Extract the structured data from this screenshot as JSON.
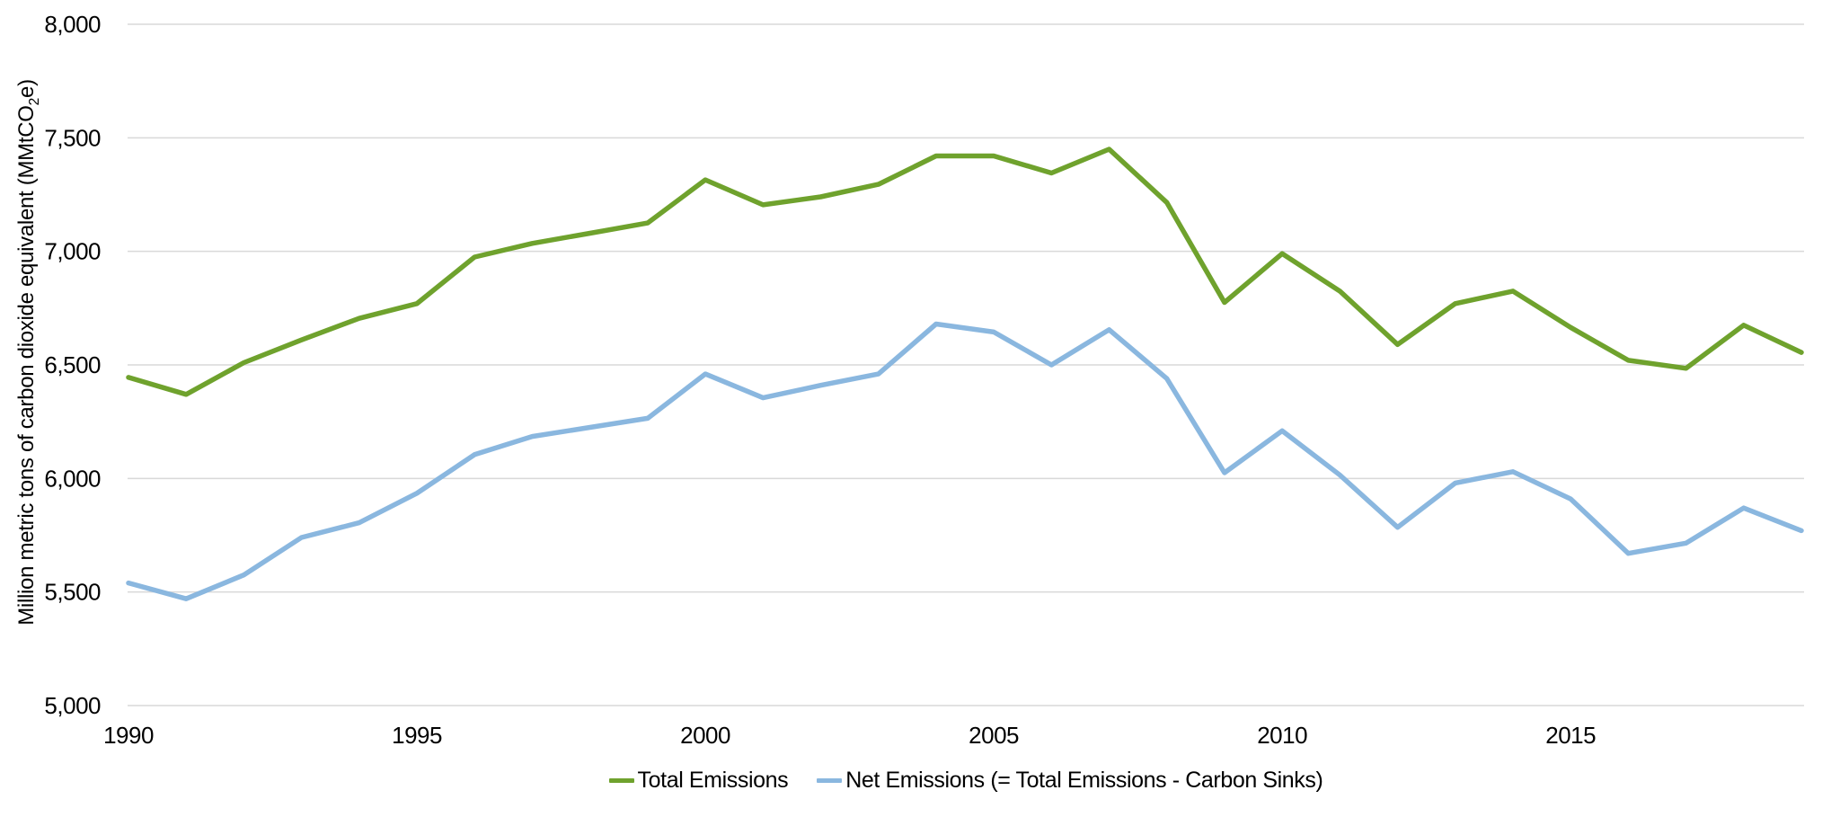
{
  "page": {
    "background_color": "#FFFFFF",
    "text_color": "#000000"
  },
  "chart_data": {
    "type": "line",
    "title": "",
    "y_axis": {
      "label_parts": {
        "pre": "Million metric tons of carbon dioxide equivalent (MMtCO",
        "sub": "2",
        "post": "e)"
      },
      "min": 5000,
      "max": 8000,
      "tick_step": 500,
      "ticks": [
        {
          "value": 5000,
          "label": "5,000"
        },
        {
          "value": 5500,
          "label": "5,500"
        },
        {
          "value": 6000,
          "label": "6,000"
        },
        {
          "value": 6500,
          "label": "6,500"
        },
        {
          "value": 7000,
          "label": "7,000"
        },
        {
          "value": 7500,
          "label": "7,500"
        },
        {
          "value": 8000,
          "label": "8,000"
        }
      ]
    },
    "x_axis": {
      "min": 1990,
      "max": 2019,
      "ticks": [
        {
          "value": 1990,
          "label": "1990"
        },
        {
          "value": 1995,
          "label": "1995"
        },
        {
          "value": 2000,
          "label": "2000"
        },
        {
          "value": 2005,
          "label": "2005"
        },
        {
          "value": 2010,
          "label": "2010"
        },
        {
          "value": 2015,
          "label": "2015"
        }
      ]
    },
    "grid": true,
    "grid_color": "#D9D9D9",
    "legend_position": "bottom-center",
    "x": [
      1990,
      1991,
      1992,
      1993,
      1994,
      1995,
      1996,
      1997,
      1998,
      1999,
      2000,
      2001,
      2002,
      2003,
      2004,
      2005,
      2006,
      2007,
      2008,
      2009,
      2010,
      2011,
      2012,
      2013,
      2014,
      2015,
      2016,
      2017,
      2018,
      2019
    ],
    "series": [
      {
        "name": "Total Emissions",
        "color": "#6FA22D",
        "values": [
          6445,
          6370,
          6510,
          6610,
          6705,
          6770,
          6975,
          7035,
          7080,
          7125,
          7315,
          7205,
          7240,
          7295,
          7420,
          7420,
          7345,
          7450,
          7215,
          6775,
          6990,
          6825,
          6590,
          6770,
          6825,
          6665,
          6520,
          6485,
          6675,
          6555
        ]
      },
      {
        "name": "Net Emissions (= Total Emissions - Carbon Sinks)",
        "color": "#8AB7DF",
        "values": [
          5540,
          5470,
          5575,
          5740,
          5805,
          5935,
          6105,
          6185,
          6225,
          6265,
          6460,
          6355,
          6410,
          6460,
          6680,
          6645,
          6500,
          6655,
          6440,
          6025,
          6210,
          6015,
          5785,
          5980,
          6030,
          5910,
          5670,
          5715,
          5870,
          5770
        ]
      }
    ]
  }
}
